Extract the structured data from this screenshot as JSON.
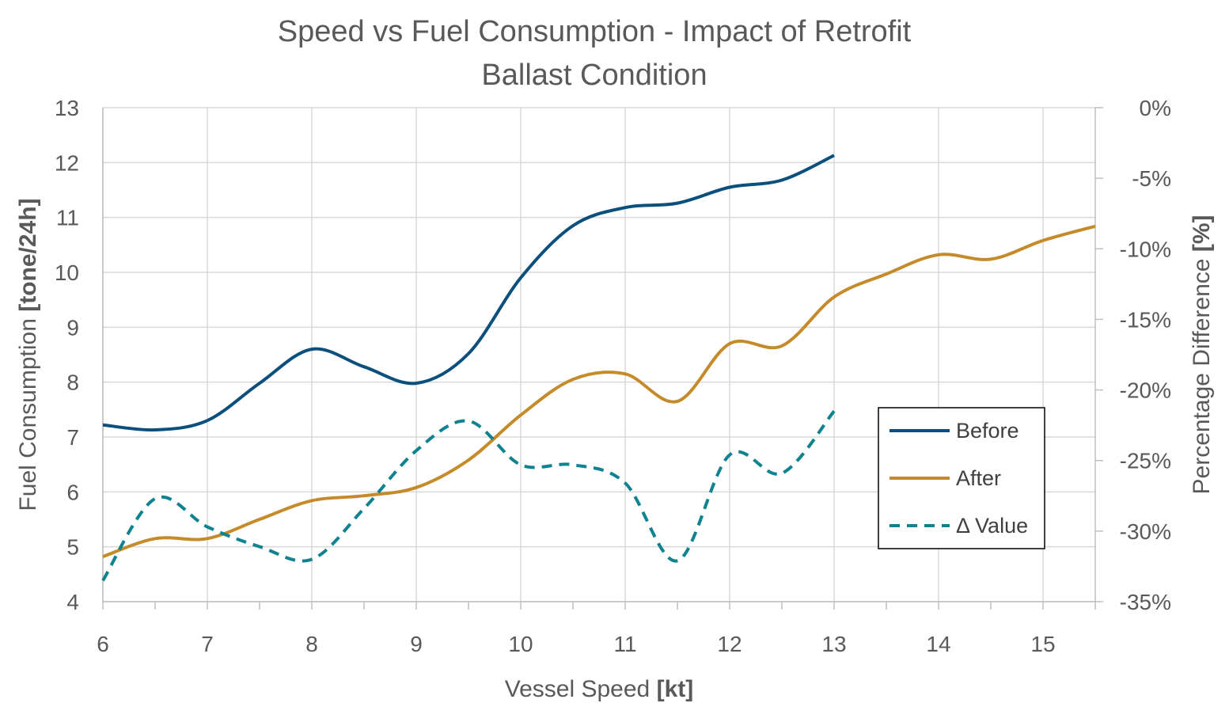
{
  "chart_data": {
    "type": "line",
    "title": "Speed vs Fuel Consumption - Impact of Retrofit",
    "subtitle": "Ballast Condition",
    "xlabel": "Vessel Speed ",
    "xlabel_unit": "[kt]",
    "ylabel": "Fuel Consumption ",
    "ylabel_unit": "[tone/24h]",
    "y2label": "Percentage Difference ",
    "y2label_unit": "[%]",
    "xlim": [
      6,
      15.5
    ],
    "ylim": [
      4,
      13
    ],
    "y2lim": [
      -35,
      0
    ],
    "x_ticks": [
      "6",
      "7",
      "8",
      "9",
      "10",
      "11",
      "12",
      "13",
      "14",
      "15"
    ],
    "y_ticks": [
      "4",
      "5",
      "6",
      "7",
      "8",
      "9",
      "10",
      "11",
      "12",
      "13"
    ],
    "y2_ticks": [
      "-35%",
      "-30%",
      "-25%",
      "-20%",
      "-15%",
      "-10%",
      "-5%",
      "0%"
    ],
    "grid": true,
    "legend_position": "bottom-right",
    "series": [
      {
        "name": "Before",
        "axis": "left",
        "color": "#0b4f7c",
        "dash": "solid",
        "x": [
          6,
          6.5,
          7,
          7.5,
          8,
          8.5,
          9,
          9.5,
          10,
          10.5,
          11,
          11.5,
          12,
          12.5,
          13
        ],
        "values": [
          7.22,
          7.13,
          7.3,
          7.98,
          8.6,
          8.28,
          7.98,
          8.52,
          9.9,
          10.85,
          11.18,
          11.26,
          11.55,
          11.68,
          12.13
        ]
      },
      {
        "name": "After",
        "axis": "left",
        "color": "#c58b2a",
        "dash": "solid",
        "x": [
          6,
          6.5,
          7,
          7.5,
          8,
          8.5,
          9,
          9.5,
          10,
          10.5,
          11,
          11.5,
          12,
          12.5,
          13,
          13.5,
          14,
          14.5,
          15,
          15.5
        ],
        "values": [
          4.82,
          5.15,
          5.15,
          5.5,
          5.84,
          5.93,
          6.08,
          6.58,
          7.4,
          8.05,
          8.15,
          7.65,
          8.7,
          8.66,
          9.55,
          9.97,
          10.32,
          10.24,
          10.58,
          10.84
        ]
      },
      {
        "name": "Δ Value",
        "axis": "right",
        "color": "#0f8290",
        "dash": "dashed",
        "x": [
          6,
          6.5,
          7,
          7.5,
          8,
          8.5,
          9,
          9.5,
          10,
          10.5,
          11,
          11.5,
          12,
          12.5,
          13
        ],
        "values": [
          -33.5,
          -27.7,
          -29.7,
          -31.1,
          -32.0,
          -28.4,
          -24.3,
          -22.2,
          -25.3,
          -25.3,
          -26.6,
          -32.1,
          -24.6,
          -25.9,
          -21.5
        ]
      }
    ]
  }
}
